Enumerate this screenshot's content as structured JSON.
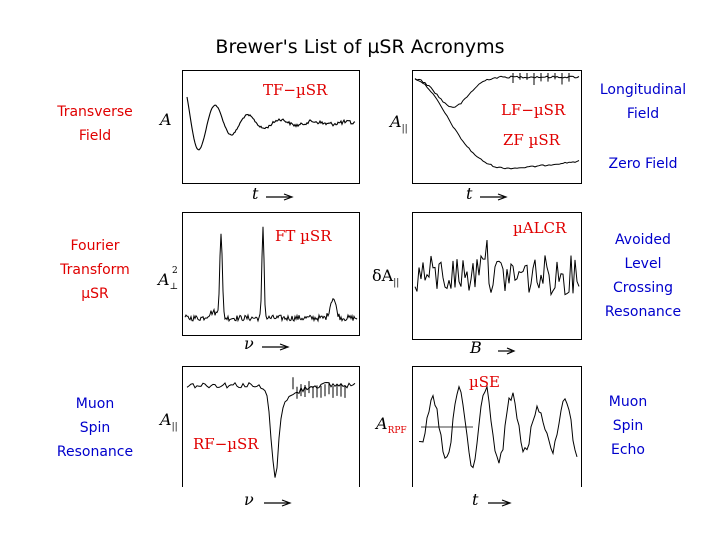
{
  "title": "Brewer's List of µSR Acronyms",
  "colors": {
    "red": "#e00000",
    "blue": "#0000cc",
    "black": "#000000"
  },
  "left_labels": [
    {
      "lines": [
        "Transverse",
        "Field"
      ],
      "color": "#e00000"
    },
    {
      "lines": [
        "Fourier",
        "Transform",
        "µSR"
      ],
      "color": "#e00000"
    },
    {
      "lines": [
        "Muon",
        "Spin",
        "Resonance"
      ],
      "color": "#0000cc"
    }
  ],
  "right_labels": [
    {
      "lines": [
        "Longitudinal",
        "Field"
      ],
      "color": "#0000cc"
    },
    {
      "lines": [
        "Zero Field"
      ],
      "color": "#0000cc"
    },
    {
      "lines": [
        "Avoided",
        "Level",
        "Crossing",
        "Resonance"
      ],
      "color": "#0000cc"
    },
    {
      "lines": [
        "Muon",
        "Spin",
        "Echo"
      ],
      "color": "#0000cc"
    }
  ],
  "panels": {
    "tf": {
      "label": "TF−µSR",
      "y_axis": "A",
      "x_axis": "t"
    },
    "lf": {
      "label1": "LF−µSR",
      "label2": "ZF µSR",
      "y_axis": "A",
      "y_sub": "||",
      "x_axis": "t"
    },
    "ft": {
      "label": "FT µSR",
      "y_axis": "A",
      "y_sub": "⊥",
      "y_sup": "2",
      "x_axis": "ν"
    },
    "alcr": {
      "label": "µALCR",
      "y_axis": "δA",
      "y_sub": "||",
      "x_axis": "B"
    },
    "rf": {
      "label": "RF−µSR",
      "y_axis": "A",
      "y_sub": "||",
      "x_axis": "ν"
    },
    "mse": {
      "label": "µSE",
      "y_axis": "A",
      "y_sub": "RPF",
      "x_axis": "t"
    }
  }
}
